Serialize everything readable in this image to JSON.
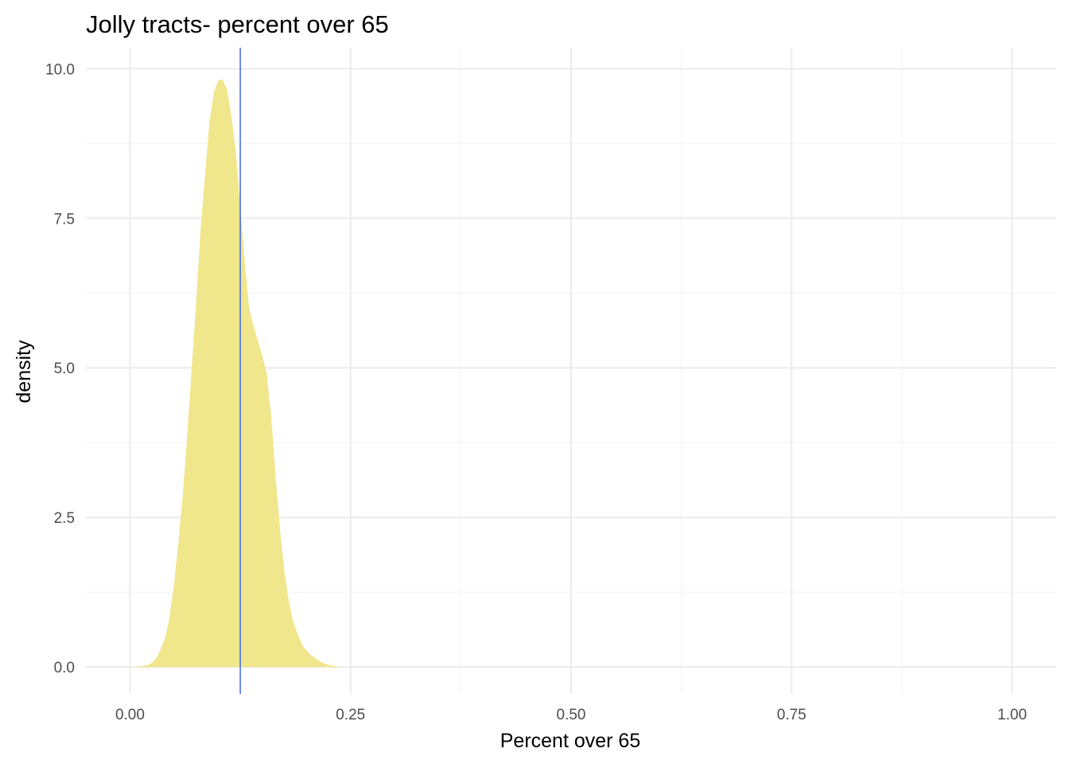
{
  "chart_data": {
    "type": "area",
    "title": "Jolly tracts- percent over 65",
    "xlabel": "Percent over 65",
    "ylabel": "density",
    "xlim": [
      -0.05,
      1.05
    ],
    "ylim": [
      -0.45,
      10.35
    ],
    "x_ticks": [
      0.0,
      0.25,
      0.5,
      0.75,
      1.0
    ],
    "x_tick_labels": [
      "0.00",
      "0.25",
      "0.50",
      "0.75",
      "1.00"
    ],
    "y_ticks": [
      0.0,
      2.5,
      5.0,
      7.5,
      10.0
    ],
    "y_tick_labels": [
      "0.0",
      "2.5",
      "5.0",
      "7.5",
      "10.0"
    ],
    "grid": true,
    "fill_color": "#f0e68c",
    "vline": {
      "x": 0.125,
      "color": "#4169e1"
    },
    "series": [
      {
        "x": [
          0.0,
          0.01,
          0.02,
          0.025,
          0.03,
          0.035,
          0.04,
          0.045,
          0.05,
          0.055,
          0.06,
          0.065,
          0.07,
          0.075,
          0.08,
          0.085,
          0.09,
          0.095,
          0.1,
          0.105,
          0.11,
          0.115,
          0.12,
          0.125,
          0.13,
          0.135,
          0.14,
          0.145,
          0.15,
          0.155,
          0.16,
          0.165,
          0.17,
          0.175,
          0.18,
          0.185,
          0.19,
          0.195,
          0.2,
          0.205,
          0.21,
          0.215,
          0.22,
          0.225,
          0.23,
          0.235,
          0.24,
          0.245,
          0.25,
          0.26,
          0.27,
          0.28,
          0.29,
          0.3
        ],
        "y": [
          0.0,
          0.01,
          0.03,
          0.07,
          0.15,
          0.3,
          0.5,
          0.85,
          1.4,
          2.1,
          2.9,
          3.9,
          5.0,
          6.1,
          7.3,
          8.2,
          9.1,
          9.6,
          9.8,
          9.82,
          9.65,
          9.2,
          8.6,
          7.7,
          6.8,
          6.0,
          5.7,
          5.45,
          5.2,
          4.9,
          4.2,
          3.2,
          2.3,
          1.6,
          1.1,
          0.75,
          0.55,
          0.38,
          0.28,
          0.2,
          0.15,
          0.1,
          0.06,
          0.04,
          0.02,
          0.01,
          0.0,
          0.0,
          0.0,
          0.0,
          0.0,
          0.0,
          0.0,
          0.0
        ]
      }
    ]
  }
}
